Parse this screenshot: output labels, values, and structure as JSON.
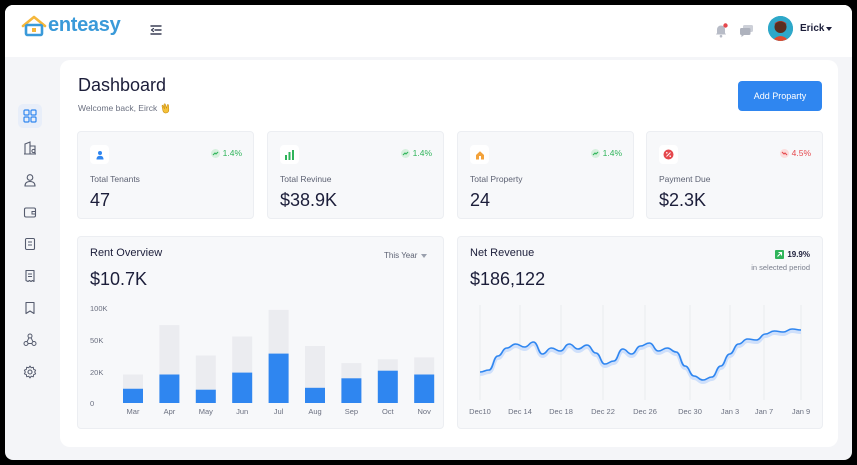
{
  "brand": {
    "name_prefix": "r",
    "name": "enteasy"
  },
  "user": {
    "name": "Erick"
  },
  "page": {
    "title": "Dashboard",
    "welcome": "Welcome back, Eirck",
    "add_button": "Add Proparty"
  },
  "colors": {
    "accent": "#2f86f0",
    "positive": "#2fb45a",
    "negative": "#e5484d",
    "bar_bg": "#ebecf0"
  },
  "sidebar": {
    "items": [
      {
        "icon": "grid-icon",
        "active": true
      },
      {
        "icon": "building-icon",
        "active": false
      },
      {
        "icon": "user-icon",
        "active": false
      },
      {
        "icon": "wallet-icon",
        "active": false
      },
      {
        "icon": "document-icon",
        "active": false
      },
      {
        "icon": "receipt-icon",
        "active": false
      },
      {
        "icon": "bookmark-icon",
        "active": false
      },
      {
        "icon": "share-nodes-icon",
        "active": false
      },
      {
        "icon": "gear-icon",
        "active": false
      }
    ]
  },
  "stats": [
    {
      "label": "Total Tenants",
      "value": "47",
      "change": "1.4%",
      "trend": "up",
      "icon": "person-icon"
    },
    {
      "label": "Total Revinue",
      "value": "$38.9K",
      "change": "1.4%",
      "trend": "up",
      "icon": "bar-chart-icon"
    },
    {
      "label": "Total Property",
      "value": "24",
      "change": "1.4%",
      "trend": "up",
      "icon": "house-icon"
    },
    {
      "label": "Payment Due",
      "value": "$2.3K",
      "change": "4.5%",
      "trend": "down",
      "icon": "percent-icon"
    }
  ],
  "rent_overview": {
    "title": "Rent Overview",
    "total": "$10.7K",
    "period": "This Year"
  },
  "net_revenue": {
    "title": "Net Revenue",
    "total": "$186,122",
    "change": "19.9%",
    "change_note": "in selected period"
  },
  "chart_data": [
    {
      "type": "bar",
      "title": "Rent Overview",
      "categories": [
        "Mar",
        "Apr",
        "May",
        "Jun",
        "Jul",
        "Aug",
        "Sep",
        "Oct",
        "Nov"
      ],
      "y_ticks": [
        "100K",
        "50K",
        "20K",
        "0"
      ],
      "series": [
        {
          "values": [
            15,
            30,
            14,
            32,
            52,
            16,
            26,
            34,
            30
          ]
        },
        {
          "values": [
            30,
            82,
            50,
            70,
            98,
            60,
            42,
            46,
            48
          ]
        }
      ]
    },
    {
      "type": "line",
      "title": "Net Revenue",
      "x_ticks": [
        "Dec10",
        "Dec 14",
        "Dec 18",
        "Dec 22",
        "Dec 26",
        "Dec 30",
        "Jan 3",
        "Jan 7",
        "Jan 9"
      ],
      "values": [
        28,
        30,
        44,
        52,
        56,
        53,
        58,
        46,
        52,
        49,
        56,
        51,
        55,
        47,
        36,
        39,
        51,
        46,
        54,
        57,
        49,
        52,
        48,
        34,
        24,
        20,
        23,
        34,
        46,
        56,
        61,
        60,
        66,
        69,
        68,
        71,
        70
      ]
    }
  ]
}
